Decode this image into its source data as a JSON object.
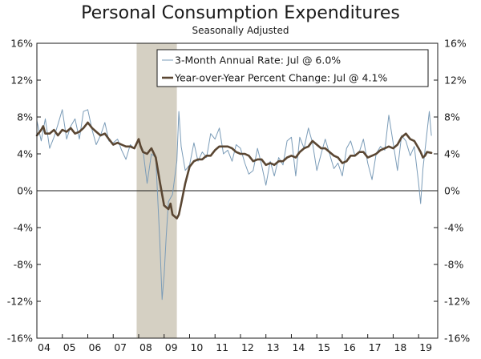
{
  "chart_data": {
    "type": "line",
    "title": "Personal Consumption Expenditures",
    "subtitle": "Seasonally Adjusted",
    "xlabel": "",
    "ylabel": "",
    "ylim": [
      -16,
      16
    ],
    "yticks": [
      16,
      12,
      8,
      4,
      0,
      -4,
      -8,
      -12,
      -16
    ],
    "ytick_labels": [
      "16%",
      "12%",
      "8%",
      "4%",
      "0%",
      "-4%",
      "-8%",
      "-12%",
      "-16%"
    ],
    "xlim": [
      2004.0,
      2019.75
    ],
    "xtick_labels": [
      "04",
      "05",
      "06",
      "07",
      "08",
      "09",
      "10",
      "11",
      "12",
      "13",
      "14",
      "15",
      "16",
      "17",
      "18",
      "19"
    ],
    "recession_shading": {
      "start": 2007.92,
      "end": 2009.5
    },
    "legend_position": "top-right",
    "grid": false,
    "series": [
      {
        "name": "3-Month Annual Rate: Jul @ 6.0%",
        "style": "thin",
        "color": "#7b9cb8",
        "points": [
          [
            2004.0,
            7.6
          ],
          [
            2004.17,
            5.4
          ],
          [
            2004.33,
            7.8
          ],
          [
            2004.5,
            4.6
          ],
          [
            2004.67,
            5.8
          ],
          [
            2004.83,
            7.2
          ],
          [
            2005.0,
            8.8
          ],
          [
            2005.17,
            5.6
          ],
          [
            2005.33,
            7.0
          ],
          [
            2005.5,
            7.8
          ],
          [
            2005.67,
            5.6
          ],
          [
            2005.83,
            8.6
          ],
          [
            2006.0,
            8.8
          ],
          [
            2006.17,
            6.6
          ],
          [
            2006.33,
            5.0
          ],
          [
            2006.5,
            6.0
          ],
          [
            2006.67,
            7.4
          ],
          [
            2006.83,
            5.4
          ],
          [
            2007.0,
            5.2
          ],
          [
            2007.17,
            5.6
          ],
          [
            2007.33,
            4.4
          ],
          [
            2007.5,
            3.4
          ],
          [
            2007.67,
            5.0
          ],
          [
            2007.83,
            4.6
          ],
          [
            2008.0,
            5.4
          ],
          [
            2008.17,
            4.4
          ],
          [
            2008.33,
            0.8
          ],
          [
            2008.5,
            4.0
          ],
          [
            2008.67,
            3.6
          ],
          [
            2008.83,
            -5.4
          ],
          [
            2008.92,
            -11.8
          ],
          [
            2009.0,
            -9.2
          ],
          [
            2009.08,
            -5.0
          ],
          [
            2009.17,
            -1.2
          ],
          [
            2009.33,
            -0.4
          ],
          [
            2009.5,
            3.2
          ],
          [
            2009.58,
            8.6
          ],
          [
            2009.67,
            4.8
          ],
          [
            2009.83,
            2.2
          ],
          [
            2010.0,
            2.8
          ],
          [
            2010.17,
            5.2
          ],
          [
            2010.33,
            3.2
          ],
          [
            2010.5,
            4.2
          ],
          [
            2010.67,
            3.6
          ],
          [
            2010.83,
            6.2
          ],
          [
            2011.0,
            5.6
          ],
          [
            2011.17,
            6.8
          ],
          [
            2011.33,
            4.0
          ],
          [
            2011.5,
            4.4
          ],
          [
            2011.67,
            3.2
          ],
          [
            2011.83,
            5.0
          ],
          [
            2012.0,
            4.6
          ],
          [
            2012.17,
            3.0
          ],
          [
            2012.33,
            1.8
          ],
          [
            2012.5,
            2.2
          ],
          [
            2012.67,
            4.6
          ],
          [
            2012.83,
            2.8
          ],
          [
            2013.0,
            0.6
          ],
          [
            2013.17,
            3.2
          ],
          [
            2013.33,
            1.6
          ],
          [
            2013.5,
            3.6
          ],
          [
            2013.67,
            2.8
          ],
          [
            2013.83,
            5.4
          ],
          [
            2014.0,
            5.8
          ],
          [
            2014.17,
            1.6
          ],
          [
            2014.33,
            5.8
          ],
          [
            2014.5,
            4.6
          ],
          [
            2014.67,
            6.8
          ],
          [
            2014.83,
            5.2
          ],
          [
            2015.0,
            2.2
          ],
          [
            2015.17,
            4.0
          ],
          [
            2015.33,
            5.6
          ],
          [
            2015.5,
            4.0
          ],
          [
            2015.67,
            2.4
          ],
          [
            2015.83,
            3.0
          ],
          [
            2016.0,
            1.6
          ],
          [
            2016.17,
            4.6
          ],
          [
            2016.33,
            5.4
          ],
          [
            2016.5,
            3.8
          ],
          [
            2016.67,
            4.2
          ],
          [
            2016.83,
            5.6
          ],
          [
            2017.0,
            3.0
          ],
          [
            2017.17,
            1.2
          ],
          [
            2017.33,
            4.0
          ],
          [
            2017.5,
            4.8
          ],
          [
            2017.67,
            4.4
          ],
          [
            2017.83,
            8.2
          ],
          [
            2018.0,
            5.2
          ],
          [
            2018.17,
            2.2
          ],
          [
            2018.33,
            6.0
          ],
          [
            2018.5,
            5.4
          ],
          [
            2018.67,
            3.8
          ],
          [
            2018.83,
            4.8
          ],
          [
            2019.0,
            0.8
          ],
          [
            2019.08,
            -1.4
          ],
          [
            2019.17,
            2.4
          ],
          [
            2019.33,
            6.4
          ],
          [
            2019.42,
            8.6
          ],
          [
            2019.5,
            6.0
          ]
        ]
      },
      {
        "name": "Year-over-Year Percent Change: Jul @ 4.1%",
        "style": "thick",
        "color": "#5a4632",
        "points": [
          [
            2004.0,
            6.0
          ],
          [
            2004.17,
            6.6
          ],
          [
            2004.25,
            7.0
          ],
          [
            2004.33,
            6.2
          ],
          [
            2004.5,
            6.2
          ],
          [
            2004.67,
            6.6
          ],
          [
            2004.83,
            6.0
          ],
          [
            2005.0,
            6.6
          ],
          [
            2005.17,
            6.4
          ],
          [
            2005.33,
            6.8
          ],
          [
            2005.5,
            6.2
          ],
          [
            2005.67,
            6.4
          ],
          [
            2005.83,
            6.8
          ],
          [
            2006.0,
            7.4
          ],
          [
            2006.17,
            6.8
          ],
          [
            2006.33,
            6.4
          ],
          [
            2006.5,
            6.0
          ],
          [
            2006.67,
            6.2
          ],
          [
            2006.83,
            5.6
          ],
          [
            2007.0,
            5.0
          ],
          [
            2007.17,
            5.2
          ],
          [
            2007.33,
            5.0
          ],
          [
            2007.5,
            4.8
          ],
          [
            2007.67,
            4.8
          ],
          [
            2007.83,
            4.6
          ],
          [
            2008.0,
            5.6
          ],
          [
            2008.08,
            4.8
          ],
          [
            2008.17,
            4.2
          ],
          [
            2008.33,
            4.0
          ],
          [
            2008.5,
            4.6
          ],
          [
            2008.67,
            3.6
          ],
          [
            2008.83,
            1.0
          ],
          [
            2009.0,
            -1.6
          ],
          [
            2009.17,
            -2.0
          ],
          [
            2009.25,
            -1.4
          ],
          [
            2009.33,
            -2.6
          ],
          [
            2009.5,
            -3.0
          ],
          [
            2009.58,
            -2.6
          ],
          [
            2009.67,
            -1.4
          ],
          [
            2009.83,
            0.8
          ],
          [
            2010.0,
            2.6
          ],
          [
            2010.17,
            3.2
          ],
          [
            2010.33,
            3.4
          ],
          [
            2010.5,
            3.4
          ],
          [
            2010.67,
            3.8
          ],
          [
            2010.83,
            3.8
          ],
          [
            2011.0,
            4.4
          ],
          [
            2011.17,
            4.8
          ],
          [
            2011.33,
            4.8
          ],
          [
            2011.5,
            4.8
          ],
          [
            2011.67,
            4.6
          ],
          [
            2011.83,
            4.2
          ],
          [
            2012.0,
            4.0
          ],
          [
            2012.17,
            4.0
          ],
          [
            2012.33,
            3.8
          ],
          [
            2012.5,
            3.2
          ],
          [
            2012.67,
            3.4
          ],
          [
            2012.83,
            3.4
          ],
          [
            2013.0,
            2.8
          ],
          [
            2013.17,
            3.0
          ],
          [
            2013.33,
            2.8
          ],
          [
            2013.5,
            3.2
          ],
          [
            2013.67,
            3.2
          ],
          [
            2013.83,
            3.6
          ],
          [
            2014.0,
            3.8
          ],
          [
            2014.17,
            3.6
          ],
          [
            2014.33,
            4.2
          ],
          [
            2014.5,
            4.6
          ],
          [
            2014.67,
            4.8
          ],
          [
            2014.83,
            5.4
          ],
          [
            2015.0,
            5.0
          ],
          [
            2015.17,
            4.6
          ],
          [
            2015.33,
            4.6
          ],
          [
            2015.5,
            4.2
          ],
          [
            2015.67,
            3.8
          ],
          [
            2015.83,
            3.6
          ],
          [
            2016.0,
            3.0
          ],
          [
            2016.17,
            3.2
          ],
          [
            2016.33,
            3.8
          ],
          [
            2016.5,
            3.8
          ],
          [
            2016.67,
            4.2
          ],
          [
            2016.83,
            4.2
          ],
          [
            2017.0,
            3.6
          ],
          [
            2017.17,
            3.8
          ],
          [
            2017.33,
            4.0
          ],
          [
            2017.5,
            4.4
          ],
          [
            2017.67,
            4.6
          ],
          [
            2017.83,
            4.8
          ],
          [
            2018.0,
            4.6
          ],
          [
            2018.17,
            5.0
          ],
          [
            2018.33,
            5.8
          ],
          [
            2018.5,
            6.2
          ],
          [
            2018.67,
            5.6
          ],
          [
            2018.83,
            5.4
          ],
          [
            2019.0,
            4.6
          ],
          [
            2019.08,
            4.2
          ],
          [
            2019.17,
            3.6
          ],
          [
            2019.25,
            3.8
          ],
          [
            2019.33,
            4.2
          ],
          [
            2019.5,
            4.1
          ]
        ]
      }
    ]
  }
}
